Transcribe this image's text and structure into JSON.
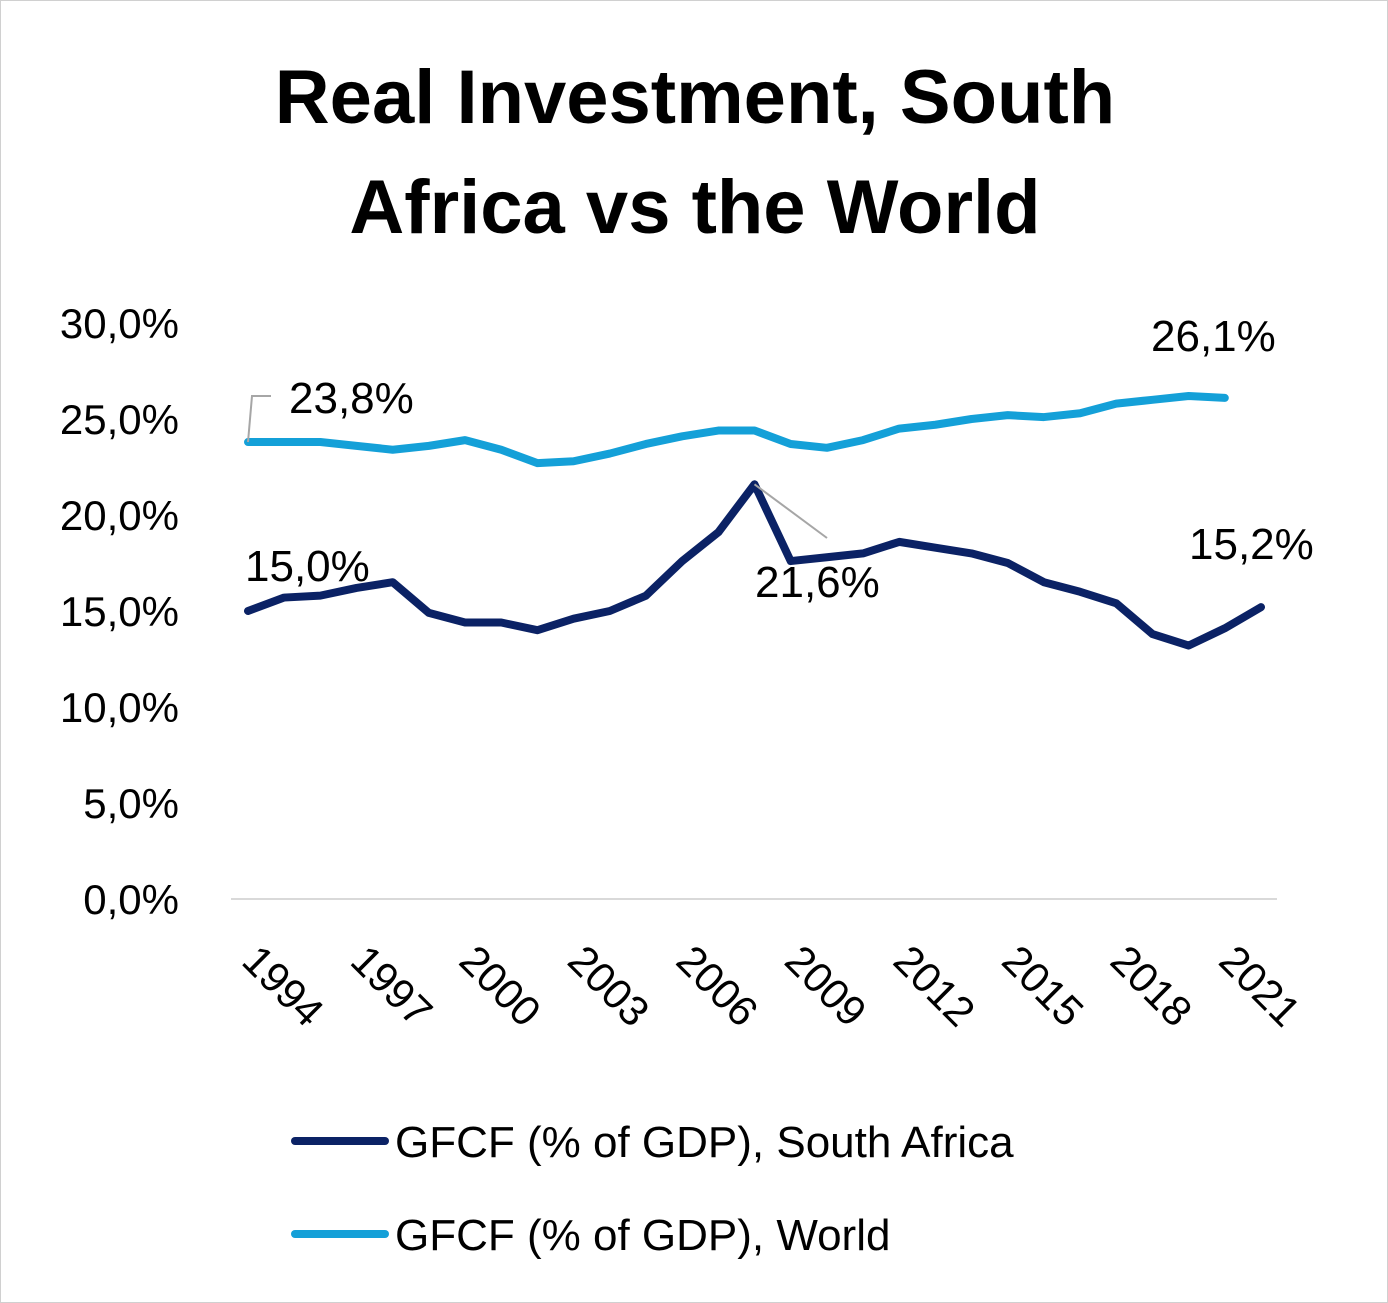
{
  "chart_data": {
    "type": "line",
    "title": "Real Investment, South Africa vs the World",
    "title_lines": [
      "Real Investment, South",
      "Africa vs the World"
    ],
    "xlabel": "",
    "ylabel": "",
    "ylim": [
      0,
      30
    ],
    "yticks": [
      "0,0%",
      "5,0%",
      "10,0%",
      "15,0%",
      "20,0%",
      "25,0%",
      "30,0%"
    ],
    "ytick_values": [
      0,
      5,
      10,
      15,
      20,
      25,
      30
    ],
    "xticks": [
      "1994",
      "1997",
      "2000",
      "2003",
      "2006",
      "2009",
      "2012",
      "2015",
      "2018",
      "2021"
    ],
    "grid": false,
    "legend_position": "bottom",
    "x": [
      1994,
      1995,
      1996,
      1997,
      1998,
      1999,
      2000,
      2001,
      2002,
      2003,
      2004,
      2005,
      2006,
      2007,
      2008,
      2009,
      2010,
      2011,
      2012,
      2013,
      2014,
      2015,
      2016,
      2017,
      2018,
      2019,
      2020,
      2021,
      2022
    ],
    "series": [
      {
        "name": "GFCF (% of GDP), South Africa",
        "color": "#0B2265",
        "values": [
          15.0,
          15.7,
          15.8,
          16.2,
          16.5,
          14.9,
          14.4,
          14.4,
          14.0,
          14.6,
          15.0,
          15.8,
          17.6,
          19.1,
          21.6,
          17.6,
          17.8,
          18.0,
          18.6,
          18.3,
          18.0,
          17.5,
          16.5,
          16.0,
          15.4,
          13.8,
          13.2,
          14.1,
          15.2
        ],
        "data_labels": [
          {
            "x": 1994,
            "text": "15,0%"
          },
          {
            "x": 2008,
            "text": "21,6%"
          },
          {
            "x": 2022,
            "text": "15,2%"
          }
        ]
      },
      {
        "name": "GFCF (% of GDP), World",
        "color": "#14A0D8",
        "values": [
          23.8,
          23.8,
          23.8,
          23.6,
          23.4,
          23.6,
          23.9,
          23.4,
          22.7,
          22.8,
          23.2,
          23.7,
          24.1,
          24.4,
          24.4,
          23.7,
          23.5,
          23.9,
          24.5,
          24.7,
          25.0,
          25.2,
          25.1,
          25.3,
          25.8,
          26.0,
          26.2,
          26.1,
          null
        ],
        "data_labels": [
          {
            "x": 1994,
            "text": "23,8%"
          },
          {
            "x": 2021,
            "text": "26,1%"
          }
        ]
      }
    ]
  }
}
